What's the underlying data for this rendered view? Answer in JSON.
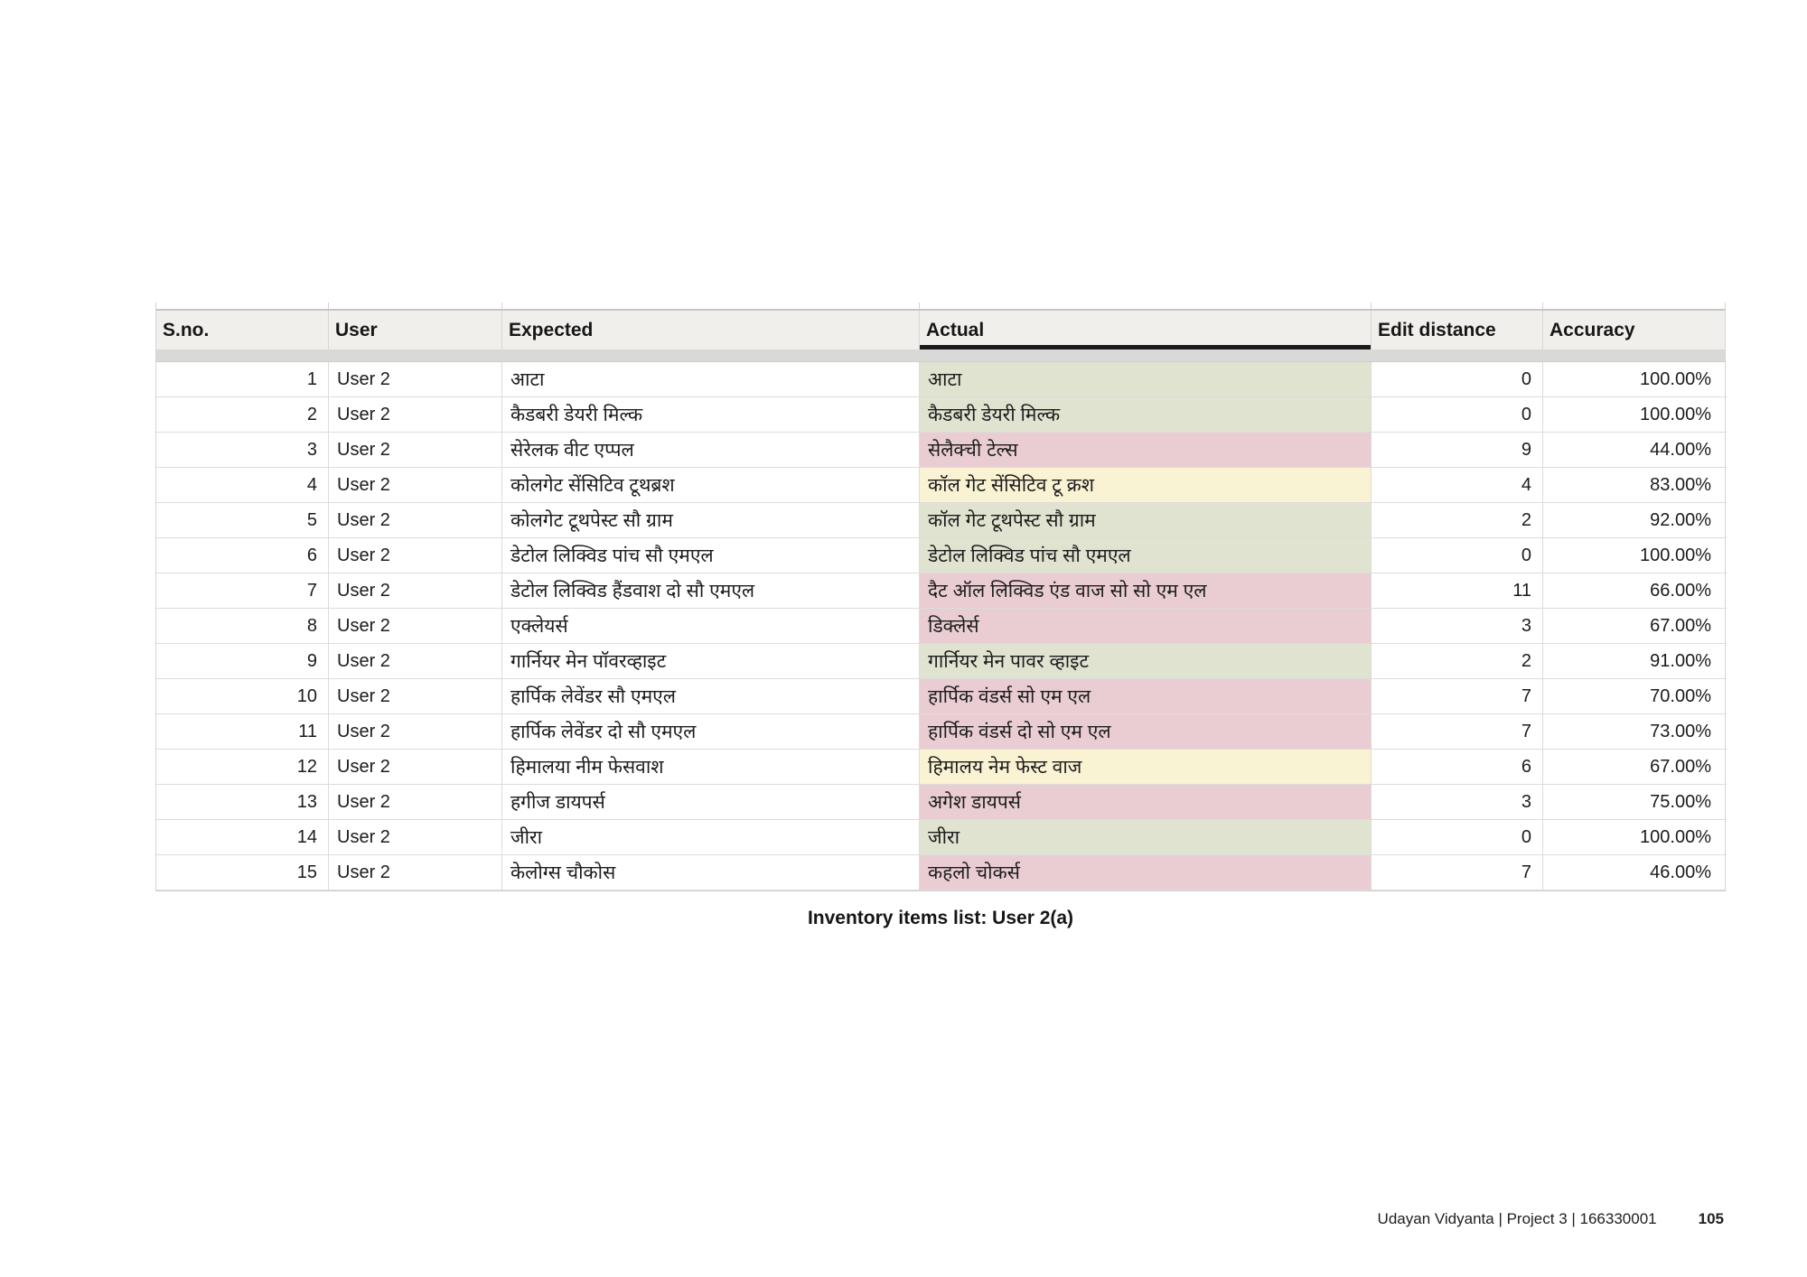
{
  "table": {
    "columns": [
      "S.no.",
      "User",
      "Expected",
      "Actual",
      "Edit distance",
      "Accuracy"
    ],
    "rows": [
      {
        "sno": "1",
        "user": "User 2",
        "expected": "आटा",
        "actual": "आटा",
        "edit_distance": "0",
        "accuracy": "100.00%",
        "status": "match"
      },
      {
        "sno": "2",
        "user": "User 2",
        "expected": "कैडबरी डेयरी मिल्क",
        "actual": "कैडबरी डेयरी मिल्क",
        "edit_distance": "0",
        "accuracy": "100.00%",
        "status": "match"
      },
      {
        "sno": "3",
        "user": "User 2",
        "expected": "सेरेलक वीट एप्पल",
        "actual": "सेलैक्ची टेल्स",
        "edit_distance": "9",
        "accuracy": "44.00%",
        "status": "mismatch"
      },
      {
        "sno": "4",
        "user": "User 2",
        "expected": "कोलगेट सेंसिटिव टूथब्रश",
        "actual": "कॉल गेट सेंसिटिव टू क्रश",
        "edit_distance": "4",
        "accuracy": "83.00%",
        "status": "partial"
      },
      {
        "sno": "5",
        "user": "User 2",
        "expected": "कोलगेट टूथपेस्ट सौ ग्राम",
        "actual": "कॉल गेट टूथपेस्ट सौ ग्राम",
        "edit_distance": "2",
        "accuracy": "92.00%",
        "status": "match"
      },
      {
        "sno": "6",
        "user": "User 2",
        "expected": "डेटोल लिक्विड पांच सौ एमएल",
        "actual": "डेटोल लिक्विड पांच सौ एमएल",
        "edit_distance": "0",
        "accuracy": "100.00%",
        "status": "match"
      },
      {
        "sno": "7",
        "user": "User 2",
        "expected": "डेटोल लिक्विड हैंडवाश दो सौ एमएल",
        "actual": "दैट ऑल लिक्विड एंड वाज सो सो एम एल",
        "edit_distance": "11",
        "accuracy": "66.00%",
        "status": "mismatch"
      },
      {
        "sno": "8",
        "user": "User 2",
        "expected": "एक्लेयर्स",
        "actual": "डिक्लेर्स",
        "edit_distance": "3",
        "accuracy": "67.00%",
        "status": "mismatch"
      },
      {
        "sno": "9",
        "user": "User 2",
        "expected": "गार्नियर मेन पॉवरव्हाइट",
        "actual": "गार्नियर मेन पावर व्हाइट",
        "edit_distance": "2",
        "accuracy": "91.00%",
        "status": "match"
      },
      {
        "sno": "10",
        "user": "User 2",
        "expected": "हार्पिक लेवेंडर सौ एमएल",
        "actual": "हार्पिक वंडर्स सो एम एल",
        "edit_distance": "7",
        "accuracy": "70.00%",
        "status": "mismatch"
      },
      {
        "sno": "11",
        "user": "User 2",
        "expected": "हार्पिक लेवेंडर दो सौ एमएल",
        "actual": "हार्पिक वंडर्स दो सो एम एल",
        "edit_distance": "7",
        "accuracy": "73.00%",
        "status": "mismatch"
      },
      {
        "sno": "12",
        "user": "User 2",
        "expected": "हिमालया नीम फेसवाश",
        "actual": "हिमालय नेम फेस्ट वाज",
        "edit_distance": "6",
        "accuracy": "67.00%",
        "status": "partial"
      },
      {
        "sno": "13",
        "user": "User 2",
        "expected": "हगीज डायपर्स",
        "actual": "अगेश डायपर्स",
        "edit_distance": "3",
        "accuracy": "75.00%",
        "status": "mismatch"
      },
      {
        "sno": "14",
        "user": "User 2",
        "expected": "जीरा",
        "actual": "जीरा",
        "edit_distance": "0",
        "accuracy": "100.00%",
        "status": "match"
      },
      {
        "sno": "15",
        "user": "User 2",
        "expected": "केलोग्स चौकोस",
        "actual": "कहलो चोकर्स",
        "edit_distance": "7",
        "accuracy": "46.00%",
        "status": "mismatch"
      }
    ]
  },
  "caption": "Inventory items list: User 2(a)",
  "footer": {
    "left": "Udayan Vidyanta | Project 3 | 166330001",
    "page": "105"
  },
  "colors": {
    "match": "#dfe3d0",
    "partial": "#f9f2d3",
    "mismatch": "#e9cdd2",
    "header_bg": "#f0efec",
    "actual_underline": "#1b1b1b"
  }
}
